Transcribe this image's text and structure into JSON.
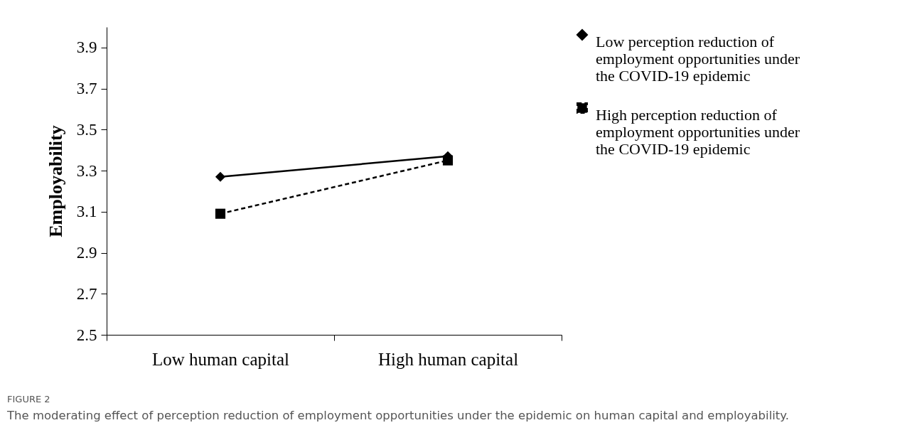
{
  "chart_data": {
    "type": "line",
    "ylabel": "Employability",
    "categories": [
      "Low human capital",
      "High human capital"
    ],
    "series": [
      {
        "name": "Low perception reduction of employment opportunities under the COVID-19 epidemic",
        "color": "#000000",
        "values": [
          3.27,
          3.37
        ],
        "marker": "diamond",
        "line_style": "solid"
      },
      {
        "name": "High perception reduction of employment opportunities under the COVID-19 epidemic",
        "color": "#000000",
        "values": [
          3.09,
          3.35
        ],
        "marker": "square",
        "line_style": "dashed"
      }
    ],
    "ylim": [
      2.5,
      4.0
    ],
    "yticks": [
      2.5,
      2.7,
      2.9,
      3.1,
      3.3,
      3.5,
      3.7,
      3.9
    ],
    "grid": false,
    "legend": "top right",
    "annotations": [
      "FIGURE 2",
      "The moderating effect of perception reduction of employment opportunities under the epidemic on human capital and employability."
    ]
  }
}
